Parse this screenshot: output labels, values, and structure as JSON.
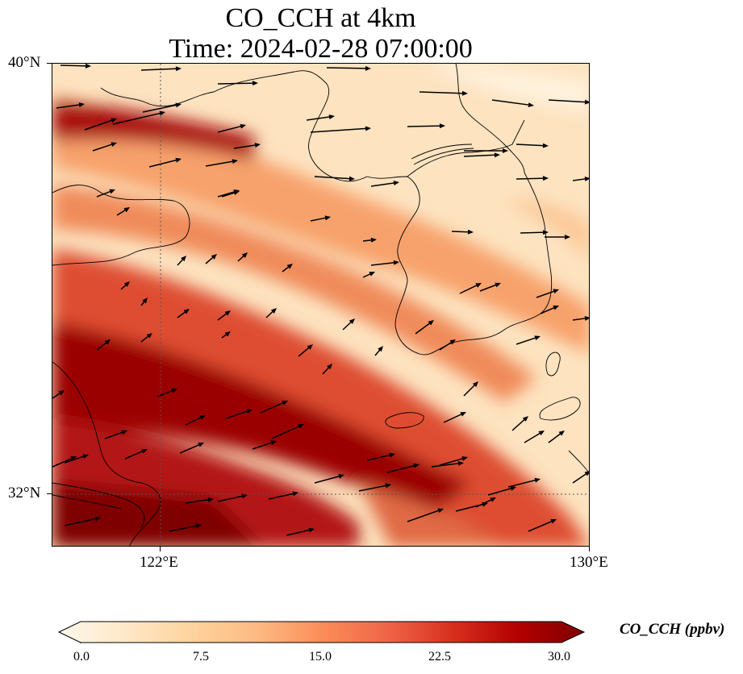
{
  "title": {
    "line1": "CO_CCH at 4km",
    "line2": "Time: 2024-02-28 07:00:00"
  },
  "axes": {
    "lat_ticks": [
      "40°N",
      "32°N"
    ],
    "lon_ticks": [
      "122°E",
      "130°E"
    ]
  },
  "colorbar": {
    "label": "CO_CCH (ppbv)",
    "tick_labels": [
      "0.0",
      "7.5",
      "15.0",
      "22.5",
      "30.0"
    ],
    "vmin": 0,
    "vmax": 30,
    "colormap": [
      "#fff7ec",
      "#fee8c8",
      "#fdd49e",
      "#fdbb84",
      "#fc8d59",
      "#ef6548",
      "#d7301f",
      "#b30000",
      "#7f0000"
    ]
  },
  "map": {
    "lon_range": [
      120,
      130
    ],
    "lat_range": [
      31,
      40
    ],
    "gridlines": "dotted at 122°E and 32°N"
  }
}
